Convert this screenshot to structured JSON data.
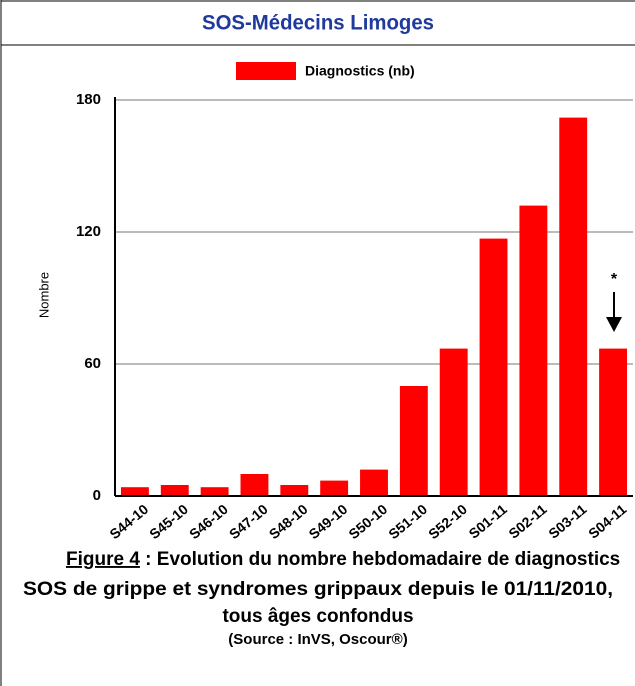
{
  "header": "SOS-Médecins Limoges",
  "chart_data": {
    "type": "bar",
    "categories": [
      "S44-10",
      "S45-10",
      "S46-10",
      "S47-10",
      "S48-10",
      "S49-10",
      "S50-10",
      "S51-10",
      "S52-10",
      "S01-11",
      "S02-11",
      "S03-11",
      "S04-11"
    ],
    "series": [
      {
        "name": "Diagnostics (nb)",
        "color": "#ff0000",
        "values": [
          4,
          5,
          4,
          10,
          5,
          7,
          12,
          50,
          67,
          117,
          132,
          172,
          67
        ]
      }
    ],
    "ylabel": "Nombre",
    "ylim": [
      0,
      180
    ],
    "yticks": [
      0,
      60,
      120,
      180
    ],
    "grid": true,
    "annotation": "*"
  },
  "caption": {
    "figure": "Figure 4",
    "line1": " : Evolution du nombre hebdomadaire de diagnostics",
    "line2": "SOS de grippe et syndromes grippaux depuis le 01/11/2010,",
    "line3": "tous âges confondus",
    "source": "(Source : InVS, Oscour®)"
  }
}
